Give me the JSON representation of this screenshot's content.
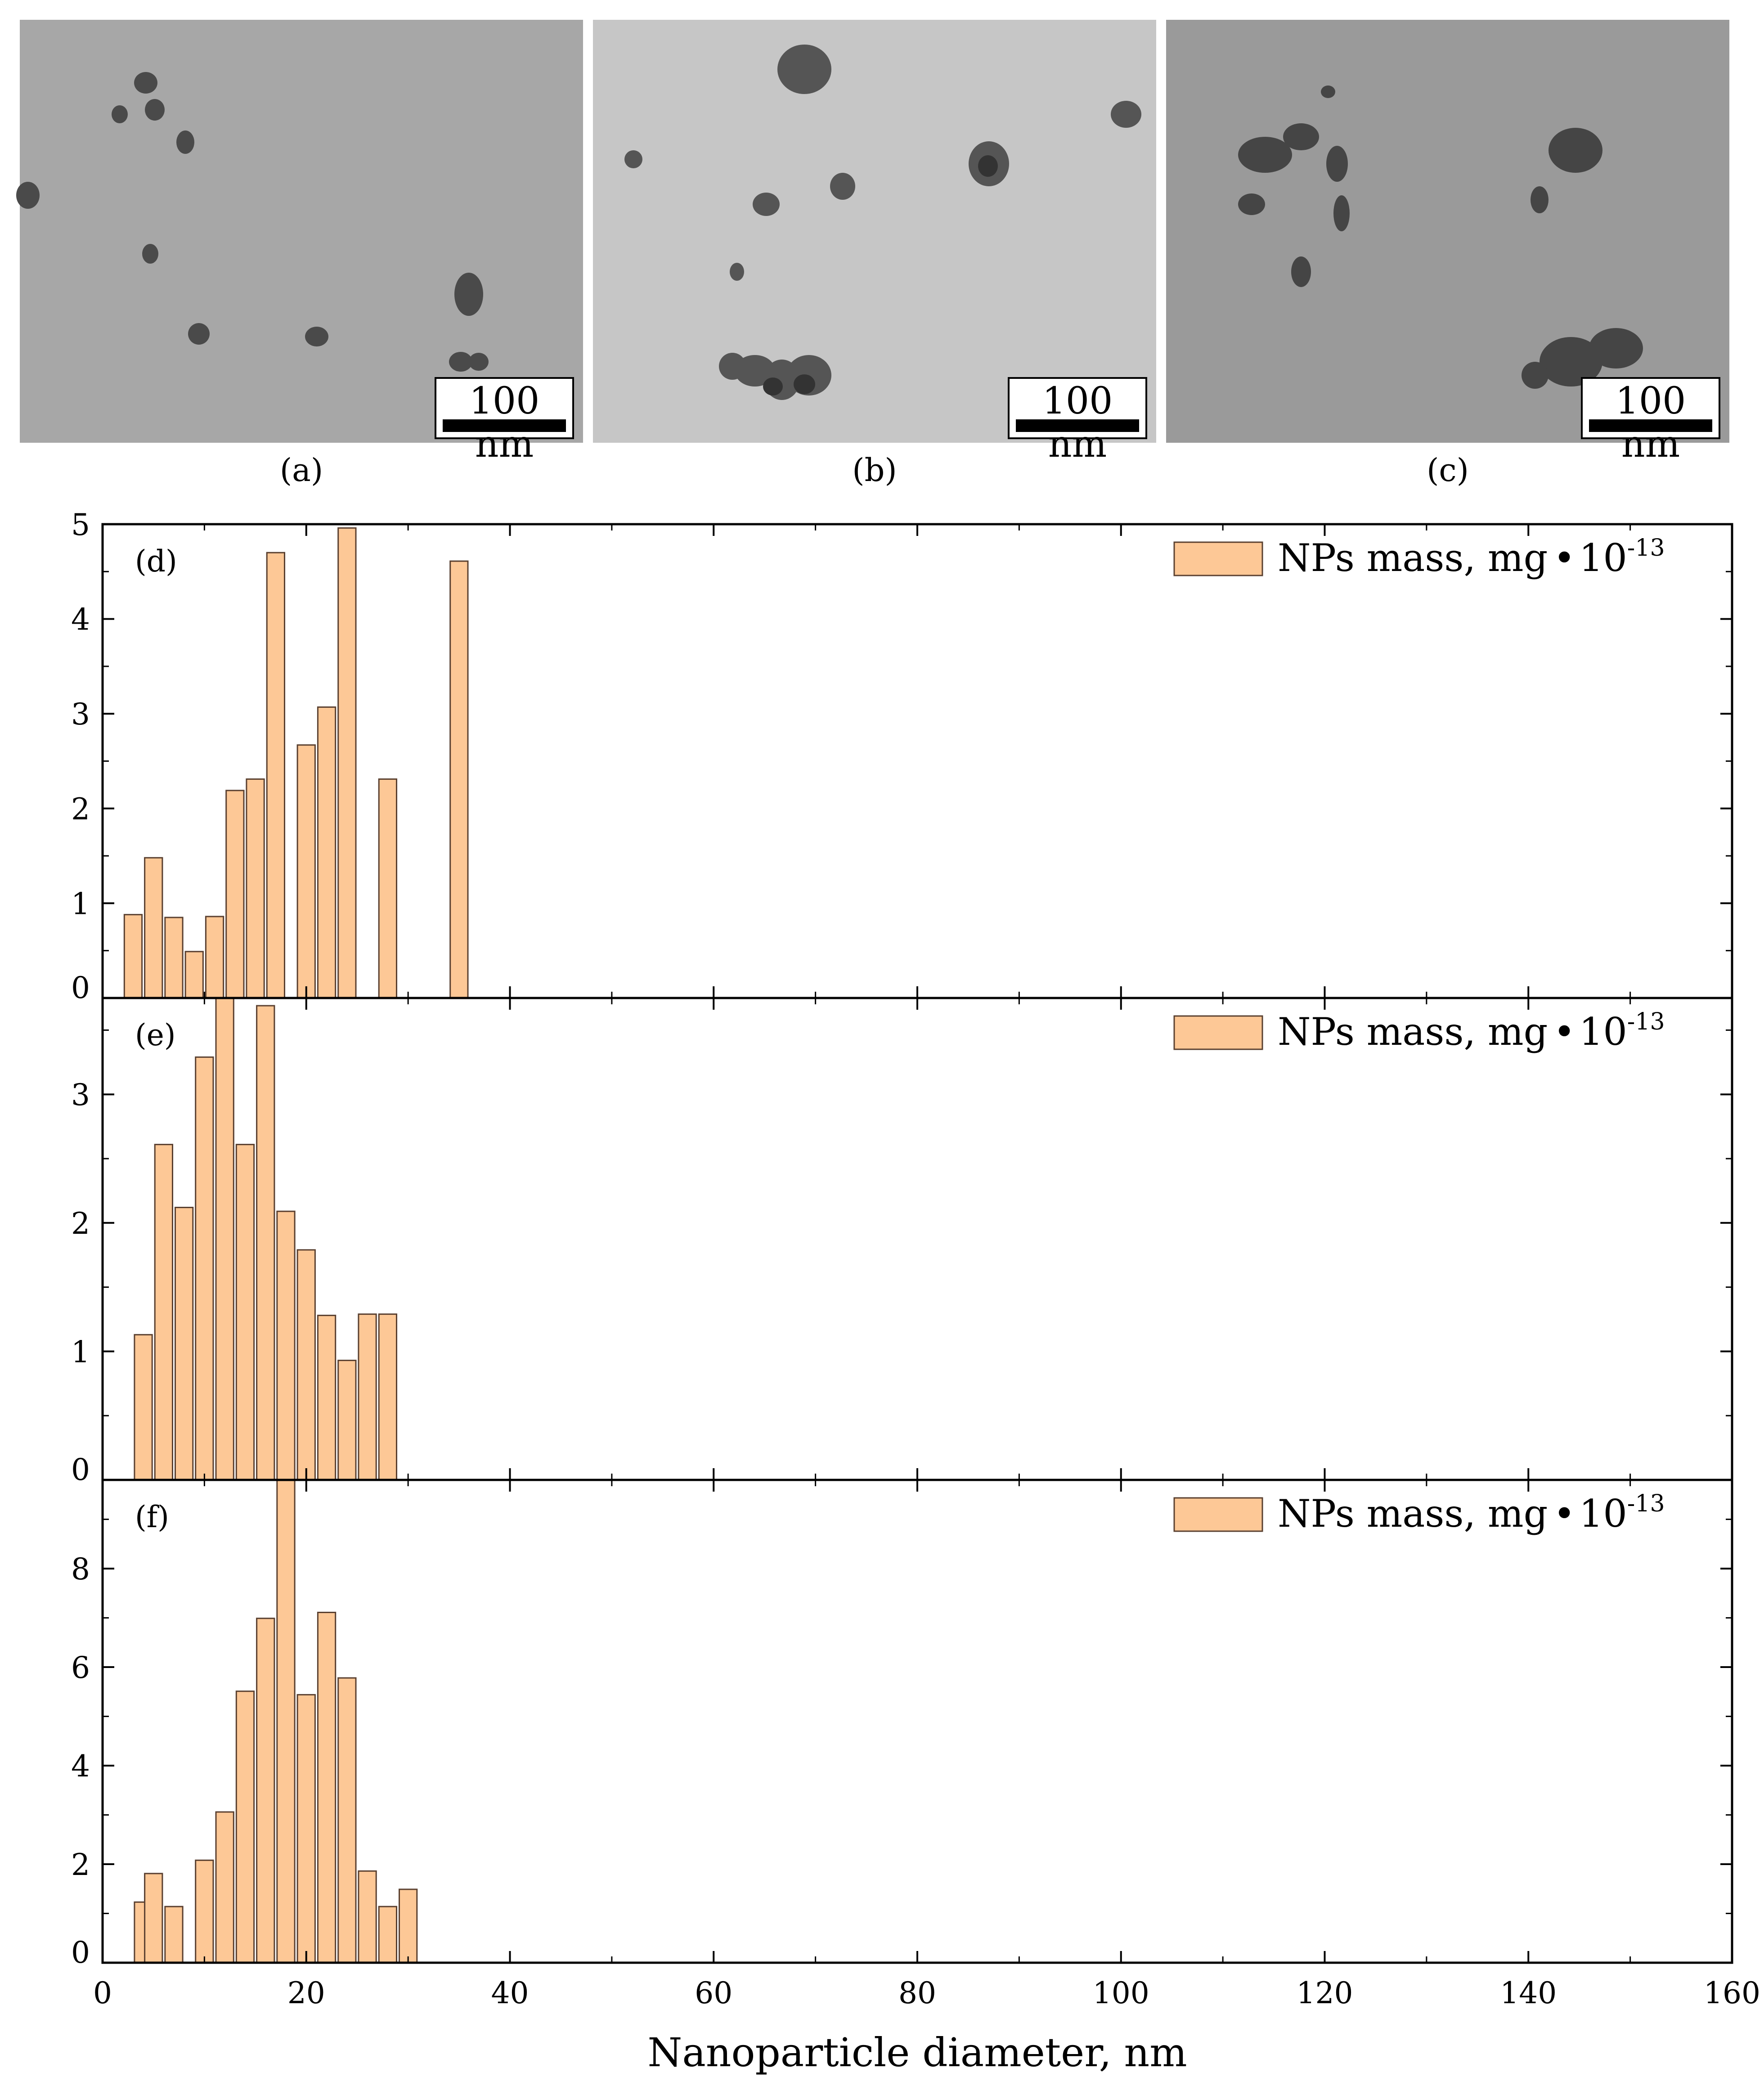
{
  "tem_images": [
    {
      "id": "a",
      "caption": "(a)",
      "scale_label": "100 nm",
      "background": "#a7a7a7"
    },
    {
      "id": "b",
      "caption": "(b)",
      "scale_label": "100 nm",
      "background": "#c6c6c6"
    },
    {
      "id": "c",
      "caption": "(c)",
      "scale_label": "100 nm",
      "background": "#9a9a9a"
    }
  ],
  "chart_data": [
    {
      "type": "bar",
      "panel_label": "(d)",
      "legend": {
        "label": "NPs mass, mg",
        "dot": "•",
        "exponent": "10",
        "superscript": "-13",
        "placement": "top-right"
      },
      "x": [
        3,
        5,
        7,
        9,
        11,
        13,
        15,
        17,
        20,
        22,
        24,
        28,
        35
      ],
      "values": [
        0.88,
        1.48,
        0.85,
        0.49,
        0.86,
        2.19,
        2.31,
        4.7,
        2.67,
        3.07,
        4.96,
        2.31,
        4.61
      ],
      "ylim": [
        0,
        5
      ],
      "yticks": [
        "0",
        "1",
        "2",
        "3",
        "4",
        "5"
      ],
      "bar_color": "#fdc896"
    },
    {
      "type": "bar",
      "panel_label": "(e)",
      "legend": {
        "label": "NPs mass, mg",
        "dot": "•",
        "exponent": "10",
        "superscript": "-13",
        "placement": "top-right"
      },
      "x": [
        4,
        6,
        8,
        10,
        12,
        14,
        16,
        18,
        20,
        22,
        24,
        26,
        28
      ],
      "values": [
        1.13,
        2.61,
        2.12,
        3.29,
        3.75,
        2.61,
        3.69,
        2.09,
        1.79,
        1.28,
        0.93,
        1.29,
        1.29
      ],
      "ylim": [
        0,
        3.75
      ],
      "yticks": [
        "0",
        "1",
        "2",
        "3"
      ],
      "bar_color": "#fdc896"
    },
    {
      "type": "bar",
      "panel_label": "(f)",
      "legend": {
        "label": "NPs mass, mg",
        "dot": "•",
        "exponent": "10",
        "superscript": "-13",
        "placement": "top-right"
      },
      "x": [
        4,
        5,
        7,
        10,
        12,
        14,
        16,
        18,
        20,
        22,
        24,
        26,
        28,
        30
      ],
      "values": [
        1.23,
        1.81,
        1.14,
        2.08,
        3.06,
        5.51,
        6.99,
        9.79,
        5.44,
        7.11,
        5.78,
        1.86,
        1.14,
        1.49
      ],
      "ylim": [
        0,
        9.8
      ],
      "yticks": [
        "0",
        "2",
        "4",
        "6",
        "8"
      ],
      "bar_color": "#fdc896"
    }
  ],
  "x_axis": {
    "label": "Nanoparticle diameter, nm",
    "range": [
      0,
      160
    ],
    "tick_labels": [
      "0",
      "20",
      "40",
      "60",
      "80",
      "100",
      "120",
      "140",
      "160"
    ]
  }
}
